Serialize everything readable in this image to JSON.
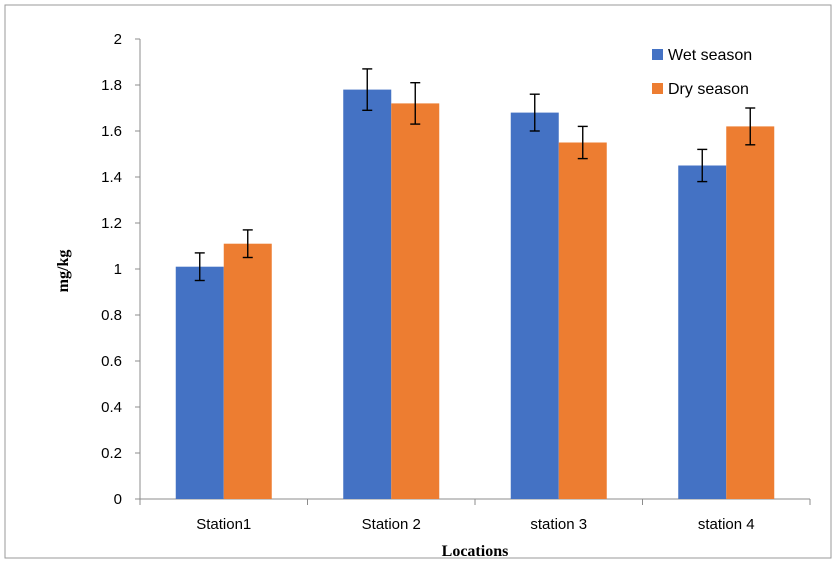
{
  "chart_data": {
    "type": "bar",
    "xlabel": "Locations",
    "ylabel": "mg/kg",
    "ylim": [
      0,
      2
    ],
    "yticks": [
      "0",
      "0.2",
      "0.4",
      "0.6",
      "0.8",
      "1",
      "1.2",
      "1.4",
      "1.6",
      "1.8",
      "2"
    ],
    "categories": [
      "Station1",
      "Station 2",
      "station 3",
      "station 4"
    ],
    "series": [
      {
        "name": "Wet season",
        "color": "#4472C4",
        "values": [
          1.01,
          1.78,
          1.68,
          1.45
        ],
        "errors": [
          0.06,
          0.09,
          0.08,
          0.07
        ]
      },
      {
        "name": "Dry season",
        "color": "#ED7D31",
        "values": [
          1.11,
          1.72,
          1.55,
          1.62
        ],
        "errors": [
          0.06,
          0.09,
          0.07,
          0.08
        ]
      }
    ],
    "legend_position": "top-right",
    "grid": false
  }
}
